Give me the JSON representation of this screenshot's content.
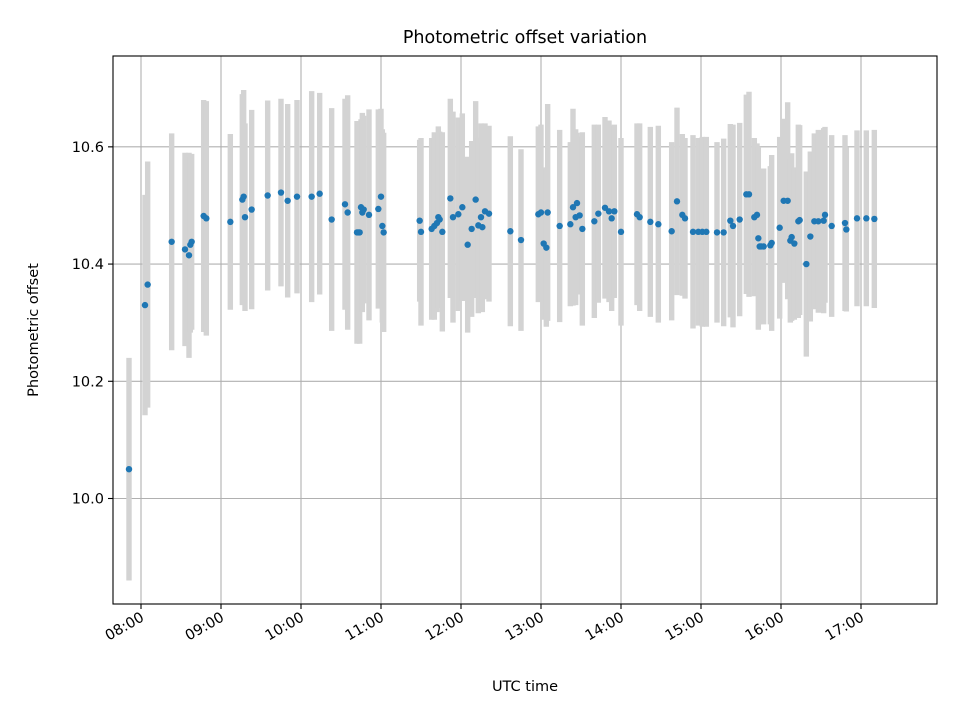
{
  "chart_data": {
    "type": "scatter",
    "title": "Photometric offset variation",
    "xlabel": "UTC time",
    "ylabel": "Photometric offset",
    "grid": true,
    "legend": "none",
    "x_ticks": [
      "08:00",
      "09:00",
      "10:00",
      "11:00",
      "12:00",
      "13:00",
      "14:00",
      "15:00",
      "16:00",
      "17:00"
    ],
    "y_ticks": [
      "10.0",
      "10.2",
      "10.4",
      "10.6"
    ],
    "xlim": [
      "07:39",
      "17:57"
    ],
    "ylim": [
      9.82,
      10.755
    ],
    "colors": {
      "point": "#1f77b4",
      "errorbar": "#d3d3d3"
    },
    "series": [
      {
        "x": [
          "07:51",
          "08:03",
          "08:05",
          "08:23",
          "08:33",
          "08:36",
          "08:37",
          "08:38",
          "08:47",
          "08:49",
          "09:07",
          "09:16",
          "09:17",
          "09:18",
          "09:23",
          "09:35",
          "09:45",
          "09:50",
          "09:57",
          "10:08",
          "10:14",
          "10:23",
          "10:33",
          "10:35",
          "10:42",
          "10:43",
          "10:44",
          "10:45",
          "10:46",
          "10:47",
          "10:51",
          "10:58",
          "11:00",
          "11:01",
          "11:02",
          "11:29",
          "11:30",
          "11:38",
          "11:40",
          "11:42",
          "11:43",
          "11:44",
          "11:46",
          "11:52",
          "11:54",
          "11:58",
          "12:01",
          "12:05",
          "12:08",
          "12:11",
          "12:13",
          "12:15",
          "12:16",
          "12:18",
          "12:21",
          "12:37",
          "12:45",
          "12:58",
          "13:00",
          "13:02",
          "13:04",
          "13:05",
          "13:14",
          "13:22",
          "13:24",
          "13:26",
          "13:27",
          "13:29",
          "13:31",
          "13:40",
          "13:43",
          "13:48",
          "13:51",
          "13:53",
          "13:55",
          "14:00",
          "14:12",
          "14:14",
          "14:22",
          "14:28",
          "14:38",
          "14:42",
          "14:46",
          "14:48",
          "14:54",
          "14:58",
          "15:01",
          "15:04",
          "15:12",
          "15:17",
          "15:22",
          "15:24",
          "15:29",
          "15:34",
          "15:36",
          "15:40",
          "15:42",
          "15:43",
          "15:44",
          "15:45",
          "15:47",
          "15:52",
          "15:53",
          "15:59",
          "16:02",
          "16:05",
          "16:07",
          "16:08",
          "16:10",
          "16:13",
          "16:14",
          "16:19",
          "16:22",
          "16:25",
          "16:28",
          "16:32",
          "16:33",
          "16:38",
          "16:48",
          "16:49",
          "16:57",
          "17:04",
          "17:10"
        ],
        "y": [
          10.05,
          10.33,
          10.365,
          10.438,
          10.425,
          10.415,
          10.433,
          10.438,
          10.482,
          10.478,
          10.472,
          10.51,
          10.515,
          10.48,
          10.493,
          10.517,
          10.522,
          10.508,
          10.515,
          10.515,
          10.52,
          10.476,
          10.502,
          10.488,
          10.454,
          10.454,
          10.454,
          10.497,
          10.488,
          10.493,
          10.484,
          10.494,
          10.515,
          10.465,
          10.454,
          10.474,
          10.455,
          10.46,
          10.465,
          10.47,
          10.48,
          10.476,
          10.455,
          10.512,
          10.48,
          10.485,
          10.497,
          10.433,
          10.46,
          10.51,
          10.466,
          10.48,
          10.463,
          10.49,
          10.486,
          10.456,
          10.441,
          10.485,
          10.488,
          10.435,
          10.428,
          10.488,
          10.465,
          10.468,
          10.497,
          10.48,
          10.504,
          10.483,
          10.46,
          10.473,
          10.486,
          10.496,
          10.49,
          10.478,
          10.49,
          10.455,
          10.485,
          10.48,
          10.472,
          10.468,
          10.456,
          10.507,
          10.484,
          10.478,
          10.455,
          10.455,
          10.455,
          10.455,
          10.454,
          10.454,
          10.474,
          10.465,
          10.476,
          10.519,
          10.519,
          10.48,
          10.484,
          10.444,
          10.43,
          10.43,
          10.43,
          10.432,
          10.436,
          10.462,
          10.508,
          10.508,
          10.44,
          10.446,
          10.435,
          10.473,
          10.475,
          10.4,
          10.447,
          10.473,
          10.473,
          10.474,
          10.484,
          10.465,
          10.47,
          10.459,
          10.478,
          10.478,
          10.477
        ],
        "yerr": [
          0.19,
          0.188,
          0.21,
          0.185,
          0.165,
          0.175,
          0.15,
          0.15,
          0.198,
          0.2,
          0.15,
          0.18,
          0.182,
          0.16,
          0.17,
          0.162,
          0.16,
          0.165,
          0.165,
          0.18,
          0.172,
          0.19,
          0.18,
          0.2,
          0.19,
          0.186,
          0.19,
          0.15,
          0.17,
          0.16,
          0.18,
          0.17,
          0.15,
          0.165,
          0.17,
          0.138,
          0.16,
          0.155,
          0.16,
          0.152,
          0.155,
          0.15,
          0.17,
          0.17,
          0.18,
          0.165,
          0.16,
          0.15,
          0.15,
          0.168,
          0.15,
          0.16,
          0.145,
          0.15,
          0.15,
          0.162,
          0.155,
          0.15,
          0.15,
          0.13,
          0.135,
          0.185,
          0.164,
          0.14,
          0.168,
          0.15,
          0.12,
          0.135,
          0.165,
          0.165,
          0.152,
          0.155,
          0.155,
          0.158,
          0.148,
          0.16,
          0.155,
          0.16,
          0.162,
          0.168,
          0.152,
          0.16,
          0.138,
          0.137,
          0.165,
          0.16,
          0.162,
          0.162,
          0.154,
          0.16,
          0.165,
          0.173,
          0.165,
          0.17,
          0.175,
          0.135,
          0.122,
          0.156,
          0.133,
          0.13,
          0.133,
          0.135,
          0.15,
          0.155,
          0.14,
          0.168,
          0.14,
          0.143,
          0.13,
          0.165,
          0.162,
          0.158,
          0.145,
          0.15,
          0.156,
          0.158,
          0.15,
          0.155,
          0.15,
          0.14,
          0.15,
          0.15,
          0.152
        ]
      }
    ]
  }
}
